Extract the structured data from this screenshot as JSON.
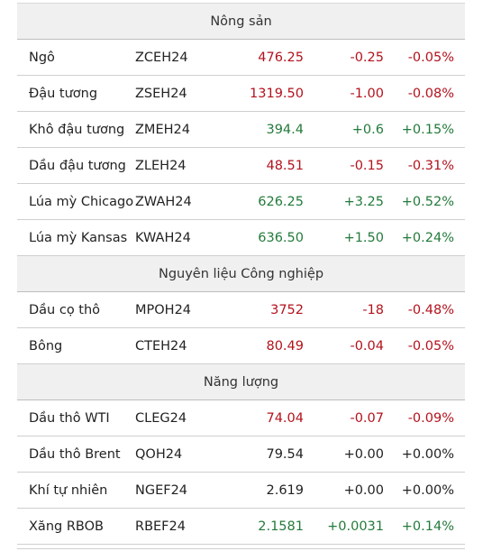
{
  "sections": [
    {
      "title": "Nông sản",
      "rows": [
        {
          "name": "Ngô",
          "code": "ZCEH24",
          "price": "476.25",
          "change": "-0.25",
          "pct": "-0.05%",
          "trend": "down"
        },
        {
          "name": "Đậu tương",
          "code": "ZSEH24",
          "price": "1319.50",
          "change": "-1.00",
          "pct": "-0.08%",
          "trend": "down"
        },
        {
          "name": "Khô đậu tương",
          "code": "ZMEH24",
          "price": "394.4",
          "change": "+0.6",
          "pct": "+0.15%",
          "trend": "up"
        },
        {
          "name": "Dầu đậu tương",
          "code": "ZLEH24",
          "price": "48.51",
          "change": "-0.15",
          "pct": "-0.31%",
          "trend": "down"
        },
        {
          "name": "Lúa mỳ Chicago",
          "code": "ZWAH24",
          "price": "626.25",
          "change": "+3.25",
          "pct": "+0.52%",
          "trend": "up"
        },
        {
          "name": "Lúa mỳ Kansas",
          "code": "KWAH24",
          "price": "636.50",
          "change": "+1.50",
          "pct": "+0.24%",
          "trend": "up"
        }
      ]
    },
    {
      "title": "Nguyên liệu Công nghiệp",
      "rows": [
        {
          "name": "Dầu cọ thô",
          "code": "MPOH24",
          "price": "3752",
          "change": "-18",
          "pct": "-0.48%",
          "trend": "down"
        },
        {
          "name": "Bông",
          "code": "CTEH24",
          "price": "80.49",
          "change": "-0.04",
          "pct": "-0.05%",
          "trend": "down"
        }
      ]
    },
    {
      "title": "Năng lượng",
      "rows": [
        {
          "name": "Dầu thô WTI",
          "code": "CLEG24",
          "price": "74.04",
          "change": "-0.07",
          "pct": "-0.09%",
          "trend": "down"
        },
        {
          "name": "Dầu thô Brent",
          "code": "QOH24",
          "price": "79.54",
          "change": "+0.00",
          "pct": "+0.00%",
          "trend": "flat"
        },
        {
          "name": "Khí tự nhiên",
          "code": "NGEF24",
          "price": "2.619",
          "change": "+0.00",
          "pct": "+0.00%",
          "trend": "flat"
        },
        {
          "name": "Xăng RBOB",
          "code": "RBEF24",
          "price": "2.1581",
          "change": "+0.0031",
          "pct": "+0.14%",
          "trend": "up"
        }
      ]
    }
  ]
}
